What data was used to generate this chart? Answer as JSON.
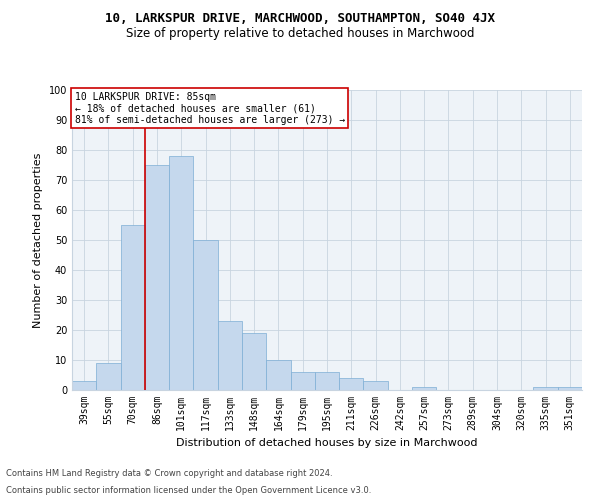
{
  "title1": "10, LARKSPUR DRIVE, MARCHWOOD, SOUTHAMPTON, SO40 4JX",
  "title2": "Size of property relative to detached houses in Marchwood",
  "xlabel": "Distribution of detached houses by size in Marchwood",
  "ylabel": "Number of detached properties",
  "categories": [
    "39sqm",
    "55sqm",
    "70sqm",
    "86sqm",
    "101sqm",
    "117sqm",
    "133sqm",
    "148sqm",
    "164sqm",
    "179sqm",
    "195sqm",
    "211sqm",
    "226sqm",
    "242sqm",
    "257sqm",
    "273sqm",
    "289sqm",
    "304sqm",
    "320sqm",
    "335sqm",
    "351sqm"
  ],
  "values": [
    3,
    9,
    55,
    75,
    78,
    50,
    23,
    19,
    10,
    6,
    6,
    4,
    3,
    0,
    1,
    0,
    0,
    0,
    0,
    1,
    1
  ],
  "bar_color": "#c5d8ed",
  "bar_edge_color": "#7dadd4",
  "grid_color": "#c8d4e0",
  "background_color": "#eef3f8",
  "annotation_box_color": "#ffffff",
  "annotation_border_color": "#cc0000",
  "vline_color": "#cc0000",
  "vline_position": 3,
  "annotation_text_line1": "10 LARKSPUR DRIVE: 85sqm",
  "annotation_text_line2": "← 18% of detached houses are smaller (61)",
  "annotation_text_line3": "81% of semi-detached houses are larger (273) →",
  "footer1": "Contains HM Land Registry data © Crown copyright and database right 2024.",
  "footer2": "Contains public sector information licensed under the Open Government Licence v3.0.",
  "ylim": [
    0,
    100
  ],
  "yticks": [
    0,
    10,
    20,
    30,
    40,
    50,
    60,
    70,
    80,
    90,
    100
  ],
  "title1_fontsize": 9,
  "title2_fontsize": 8.5,
  "xlabel_fontsize": 8,
  "ylabel_fontsize": 8,
  "tick_fontsize": 7,
  "annotation_fontsize": 7,
  "footer_fontsize": 6
}
